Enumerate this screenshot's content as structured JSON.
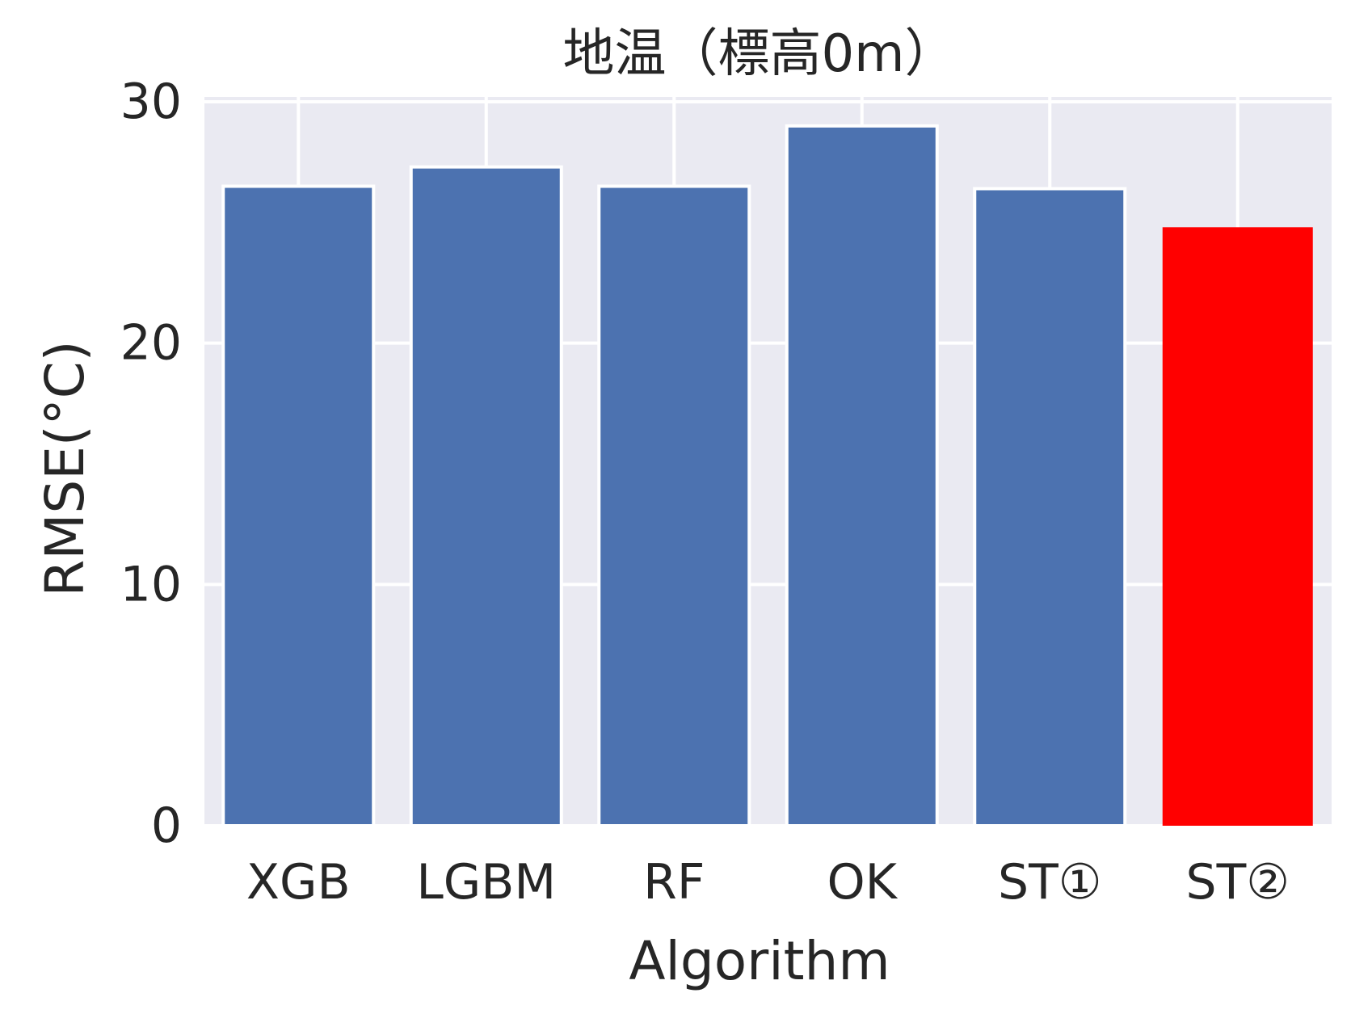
{
  "chart_data": {
    "type": "bar",
    "title": "地温（標高0m）",
    "xlabel": "Algorithm",
    "ylabel": "RMSE(°C)",
    "categories": [
      "XGB",
      "LGBM",
      "RF",
      "OK",
      "ST①",
      "ST②"
    ],
    "values": [
      26.5,
      27.3,
      26.5,
      29.0,
      26.4,
      24.8
    ],
    "ylim": [
      0,
      30.2
    ],
    "yticks": [
      0,
      10,
      20,
      30
    ],
    "grid": true,
    "colors": {
      "background": "#eaeaf2",
      "default_bar": "#4c72b0",
      "highlight_bar": "#ff0000",
      "grid": "#ffffff"
    },
    "highlight_index": 5
  }
}
